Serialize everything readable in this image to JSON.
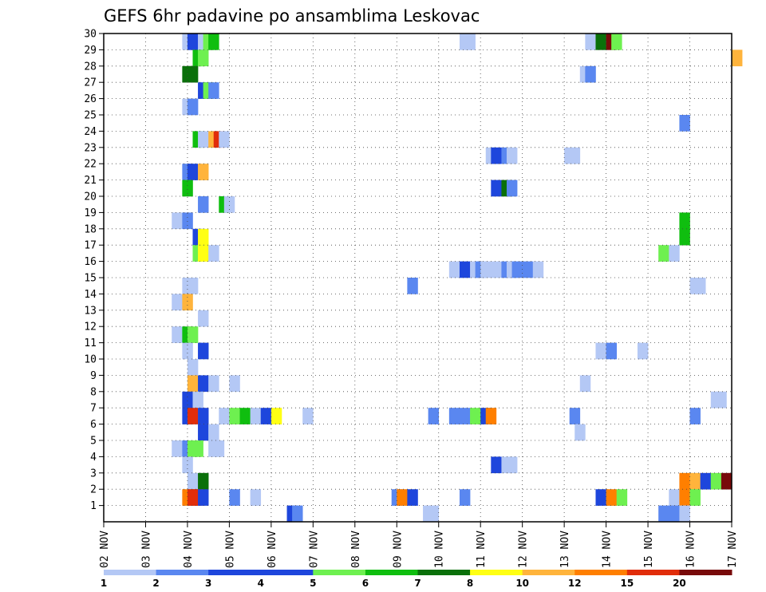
{
  "chart_data": {
    "type": "heatmap",
    "title": "GEFS 6hr padavine po ansamblima Leskovac",
    "xlabel": "",
    "ylabel": "",
    "x_ticks": [
      "02 NOV",
      "03 NOV",
      "04 NOV",
      "05 NOV",
      "06 NOV",
      "07 NOV",
      "08 NOV",
      "09 NOV",
      "10 NOV",
      "11 NOV",
      "12 NOV",
      "13 NOV",
      "14 NOV",
      "15 NOV",
      "16 NOV",
      "17 NOV"
    ],
    "y_ticks": [
      "1",
      "2",
      "3",
      "4",
      "5",
      "6",
      "7",
      "8",
      "9",
      "10",
      "11",
      "12",
      "13",
      "14",
      "15",
      "16",
      "17",
      "18",
      "19",
      "20",
      "21",
      "22",
      "23",
      "24",
      "25",
      "26",
      "27",
      "28",
      "29",
      "30"
    ],
    "xlim_steps": [
      0,
      60
    ],
    "ylim_members": [
      0,
      30
    ],
    "time_step_hours": 6,
    "grid": true,
    "legend_placement": "bottom",
    "colorbar": {
      "labels": [
        "1",
        "2",
        "3",
        "4",
        "5",
        "6",
        "7",
        "8",
        "10",
        "12",
        "15",
        "20"
      ],
      "colors": [
        "#b4c8f5",
        "#5a87f0",
        "#1e46dc",
        "#1e46dc",
        "#6ef050",
        "#0fbe0f",
        "#0a700a",
        "#ffff14",
        "#ffb43c",
        "#ff7f00",
        "#e12d0a",
        "#780a0a"
      ]
    },
    "levels": {
      "1": "#b4c8f5",
      "2": "#5a87f0",
      "3": "#1e46dc",
      "5": "#6ef050",
      "6": "#0fbe0f",
      "7": "#0a700a",
      "8": "#ffff14",
      "10": "#ffb43c",
      "12": "#ff7f00",
      "15": "#e12d0a",
      "20": "#780a0a"
    },
    "cells": [
      [
        30,
        7.5,
        1
      ],
      [
        30,
        8,
        3
      ],
      [
        30,
        9,
        1
      ],
      [
        30,
        9.5,
        5
      ],
      [
        30,
        10,
        6
      ],
      [
        30,
        34,
        1
      ],
      [
        30,
        34.5,
        1
      ],
      [
        30,
        46,
        1
      ],
      [
        30,
        47,
        7
      ],
      [
        30,
        48,
        20
      ],
      [
        30,
        48.5,
        5
      ],
      [
        29,
        8.5,
        6
      ],
      [
        29,
        9,
        5
      ],
      [
        29,
        60,
        10
      ],
      [
        28,
        7.5,
        7
      ],
      [
        28,
        8,
        7
      ],
      [
        28,
        45.5,
        1
      ],
      [
        28,
        46,
        2
      ],
      [
        27,
        9,
        3
      ],
      [
        27,
        9.5,
        5
      ],
      [
        27,
        10,
        2
      ],
      [
        26,
        7.5,
        1
      ],
      [
        26,
        8,
        2
      ],
      [
        25,
        55,
        2
      ],
      [
        24,
        8.5,
        6
      ],
      [
        24,
        9,
        1
      ],
      [
        24,
        10,
        10
      ],
      [
        24,
        10.5,
        15
      ],
      [
        24,
        11,
        1
      ],
      [
        23,
        36.5,
        1
      ],
      [
        23,
        37,
        3
      ],
      [
        23,
        38,
        2
      ],
      [
        23,
        38.5,
        1
      ],
      [
        23,
        44,
        1
      ],
      [
        23,
        44.5,
        1
      ],
      [
        22,
        7.5,
        2
      ],
      [
        22,
        8,
        3
      ],
      [
        22,
        9,
        10
      ],
      [
        21,
        7.5,
        6
      ],
      [
        21,
        37,
        3
      ],
      [
        21,
        38,
        7
      ],
      [
        21,
        38.5,
        2
      ],
      [
        20,
        9,
        2
      ],
      [
        20,
        11,
        6
      ],
      [
        20,
        11.5,
        1
      ],
      [
        19,
        6.5,
        1
      ],
      [
        19,
        7.5,
        2
      ],
      [
        19,
        55,
        6
      ],
      [
        18,
        8.5,
        3
      ],
      [
        18,
        9,
        8
      ],
      [
        18,
        55,
        6
      ],
      [
        17,
        8.5,
        5
      ],
      [
        17,
        9,
        8
      ],
      [
        17,
        10,
        1
      ],
      [
        17,
        53,
        5
      ],
      [
        17,
        54,
        1
      ],
      [
        16,
        33,
        1
      ],
      [
        16,
        34,
        3
      ],
      [
        16,
        35,
        1
      ],
      [
        16,
        35.5,
        2
      ],
      [
        16,
        36,
        1
      ],
      [
        16,
        37,
        1
      ],
      [
        16,
        38,
        2
      ],
      [
        16,
        38.5,
        1
      ],
      [
        16,
        39,
        2
      ],
      [
        16,
        40,
        2
      ],
      [
        16,
        41,
        1
      ],
      [
        15,
        7.5,
        1
      ],
      [
        15,
        8,
        1
      ],
      [
        15,
        29,
        2
      ],
      [
        15,
        56,
        1
      ],
      [
        15,
        56.5,
        1
      ],
      [
        14,
        6.5,
        1
      ],
      [
        14,
        7.5,
        10
      ],
      [
        13,
        9,
        1
      ],
      [
        12,
        6.5,
        1
      ],
      [
        12,
        7.5,
        6
      ],
      [
        12,
        8,
        5
      ],
      [
        11,
        7.5,
        1
      ],
      [
        11,
        9,
        3
      ],
      [
        11,
        47,
        1
      ],
      [
        11,
        48,
        2
      ],
      [
        11,
        51,
        1
      ],
      [
        10,
        8,
        1
      ],
      [
        9,
        8,
        10
      ],
      [
        9,
        9,
        3
      ],
      [
        9,
        10,
        1
      ],
      [
        9,
        12,
        1
      ],
      [
        9,
        45.5,
        1
      ],
      [
        8,
        7.5,
        3
      ],
      [
        8,
        8.5,
        1
      ],
      [
        8,
        58,
        1
      ],
      [
        8,
        58.5,
        1
      ],
      [
        7,
        7.5,
        3
      ],
      [
        7,
        8,
        15
      ],
      [
        7,
        9,
        3
      ],
      [
        7,
        11,
        1
      ],
      [
        7,
        12,
        5
      ],
      [
        7,
        13,
        6
      ],
      [
        7,
        14,
        1
      ],
      [
        7,
        15,
        3
      ],
      [
        7,
        16,
        8
      ],
      [
        7,
        19,
        1
      ],
      [
        7,
        31,
        2
      ],
      [
        7,
        33,
        2
      ],
      [
        7,
        34,
        2
      ],
      [
        7,
        35,
        5
      ],
      [
        7,
        36,
        3
      ],
      [
        7,
        36.5,
        12
      ],
      [
        7,
        44.5,
        2
      ],
      [
        7,
        56,
        2
      ],
      [
        6,
        9,
        3
      ],
      [
        6,
        10,
        1
      ],
      [
        6,
        45,
        1
      ],
      [
        5,
        6.5,
        1
      ],
      [
        5,
        7.5,
        2
      ],
      [
        5,
        8,
        5
      ],
      [
        5,
        8.5,
        5
      ],
      [
        5,
        10,
        1
      ],
      [
        5,
        10.5,
        1
      ],
      [
        4,
        7.5,
        1
      ],
      [
        4,
        37,
        3
      ],
      [
        4,
        38,
        1
      ],
      [
        4,
        38.5,
        1
      ],
      [
        3,
        8,
        1
      ],
      [
        3,
        9,
        7
      ],
      [
        3,
        55,
        12
      ],
      [
        3,
        56,
        10
      ],
      [
        3,
        57,
        3
      ],
      [
        3,
        58,
        5
      ],
      [
        3,
        59,
        20
      ],
      [
        2,
        7.5,
        12
      ],
      [
        2,
        8,
        15
      ],
      [
        2,
        8.5,
        15
      ],
      [
        2,
        9,
        3
      ],
      [
        2,
        12,
        2
      ],
      [
        2,
        14,
        1
      ],
      [
        2,
        27.5,
        2
      ],
      [
        2,
        28,
        12
      ],
      [
        2,
        29,
        3
      ],
      [
        2,
        34,
        2
      ],
      [
        2,
        47,
        3
      ],
      [
        2,
        48,
        12
      ],
      [
        2,
        49,
        5
      ],
      [
        2,
        54,
        1
      ],
      [
        2,
        55,
        12
      ],
      [
        2,
        56,
        5
      ],
      [
        1,
        17.5,
        3
      ],
      [
        1,
        18,
        2
      ],
      [
        1,
        30.5,
        1
      ],
      [
        1,
        31,
        1
      ],
      [
        1,
        53,
        2
      ],
      [
        1,
        54,
        2
      ],
      [
        1,
        55,
        1
      ]
    ]
  }
}
